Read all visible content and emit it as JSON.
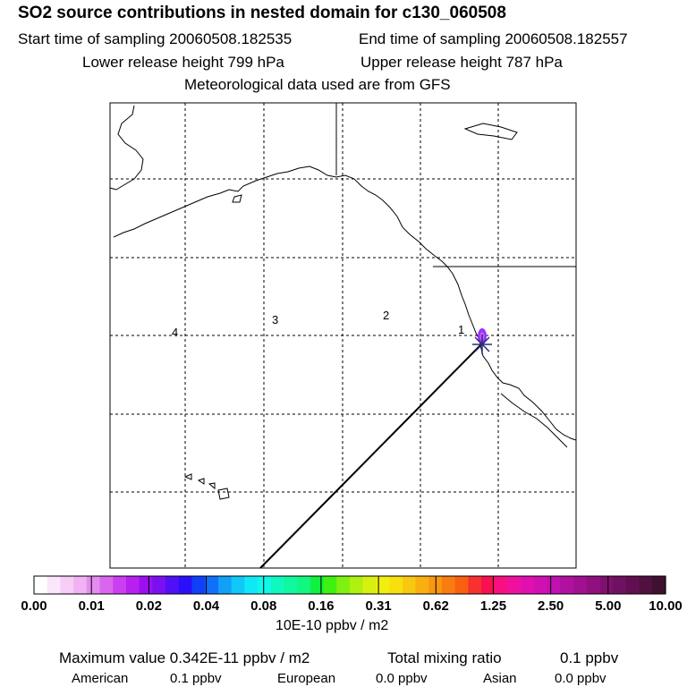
{
  "title": "SO2 source contributions in nested domain for c130_060508",
  "sampling": {
    "start": "Start time of sampling 20060508.182535",
    "end": "End time of sampling 20060508.182557"
  },
  "release": {
    "lower": "Lower release height  799 hPa",
    "upper": "Upper release height  787 hPa"
  },
  "met": "Meteorological data used are from GFS",
  "chart_data": {
    "type": "heatmap",
    "title": "SO2 source contributions in nested domain for c130_060508",
    "map_features": "coastlines of western North America and Hawaii with dashed lat/lon graticule",
    "back_trajectory_day_labels": [
      "1",
      "2",
      "3",
      "4"
    ],
    "colorbar": {
      "ticks": [
        "0.00",
        "0.01",
        "0.02",
        "0.04",
        "0.08",
        "0.16",
        "0.31",
        "0.62",
        "1.25",
        "2.50",
        "5.00",
        "10.00"
      ],
      "units": "10E-10 ppbv / m2",
      "colors": [
        "#ffffff",
        "#fbe6fb",
        "#f6cdf6",
        "#efb3f3",
        "#e58cf0",
        "#da66ef",
        "#cc3ff0",
        "#b81ff0",
        "#9a10f0",
        "#7a10f0",
        "#5010f5",
        "#2a10f8",
        "#1040f8",
        "#1070f8",
        "#10a0f8",
        "#10c8f8",
        "#10e8f8",
        "#10f8e8",
        "#10f8c0",
        "#10f8a0",
        "#10f880",
        "#10f040",
        "#40f010",
        "#80f010",
        "#b0f010",
        "#d8f010",
        "#f0f010",
        "#f8e010",
        "#f8c810",
        "#f8b010",
        "#f89810",
        "#f87c10",
        "#f86010",
        "#f83030",
        "#f81050",
        "#f81080",
        "#f010a0",
        "#e010b0",
        "#d010b0",
        "#c010b0",
        "#b010a0",
        "#a01090",
        "#901080",
        "#801070",
        "#701060",
        "#601050",
        "#501040",
        "#401030"
      ]
    },
    "plume": {
      "description": "small purple source contribution near receptor",
      "color": "#9b30ff"
    }
  },
  "stats": {
    "max_label": "Maximum value  0.342E-11 ppbv / m2",
    "total_label": "Total mixing ratio",
    "total_value": "0.1 ppbv"
  },
  "regions": [
    {
      "name": "American",
      "value": "0.1 ppbv"
    },
    {
      "name": "European",
      "value": "0.0 ppbv"
    },
    {
      "name": "Asian",
      "value": "0.0 ppbv"
    }
  ]
}
